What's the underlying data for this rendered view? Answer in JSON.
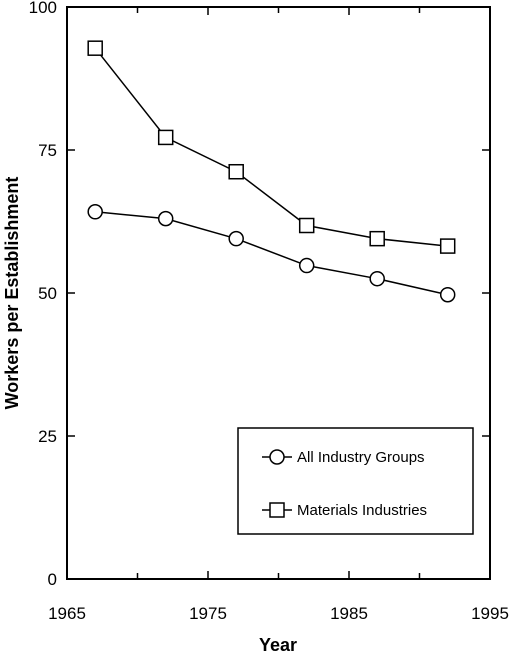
{
  "chart_data": {
    "type": "line",
    "title": "",
    "xlabel": "Year",
    "ylabel": "Workers per Establishment",
    "xlim": [
      1965,
      1995
    ],
    "ylim": [
      0,
      100
    ],
    "x_ticks": [
      "1965",
      "1975",
      "1985",
      "1995"
    ],
    "y_ticks": [
      "0",
      "25",
      "50",
      "75",
      "100"
    ],
    "x": [
      1967,
      1972,
      1977,
      1982,
      1987,
      1992
    ],
    "series": [
      {
        "name": "All Industry Groups",
        "marker": "circle",
        "values": [
          64.2,
          63.0,
          59.5,
          54.8,
          52.5,
          49.7
        ]
      },
      {
        "name": "Materials Industries",
        "marker": "square",
        "values": [
          92.8,
          77.2,
          71.2,
          61.8,
          59.5,
          58.2
        ]
      }
    ],
    "grid": false,
    "legend_position": "bottom-right",
    "colors": {
      "line": "#000000",
      "marker_fill": "#ffffff",
      "background": "#ffffff"
    }
  }
}
